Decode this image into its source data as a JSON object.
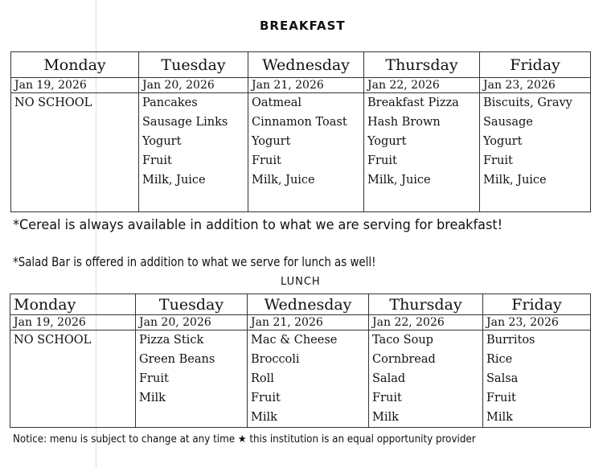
{
  "breakfast": {
    "title": "BREAKFAST",
    "days": [
      {
        "day": "Monday",
        "date": "Jan 19, 2026",
        "items": [
          "NO SCHOOL"
        ]
      },
      {
        "day": "Tuesday",
        "date": "Jan 20, 2026",
        "items": [
          "Pancakes",
          "Sausage Links",
          "Yogurt",
          "Fruit",
          "Milk, Juice"
        ]
      },
      {
        "day": "Wednesday",
        "date": "Jan 21, 2026",
        "items": [
          "Oatmeal",
          "Cinnamon Toast",
          "Yogurt",
          "Fruit",
          "Milk, Juice"
        ]
      },
      {
        "day": "Thursday",
        "date": "Jan 22, 2026",
        "items": [
          "Breakfast Pizza",
          "Hash Brown",
          "Yogurt",
          "Fruit",
          "Milk, Juice"
        ]
      },
      {
        "day": "Friday",
        "date": "Jan 23, 2026",
        "items": [
          "Biscuits, Gravy",
          "Sausage",
          "Yogurt",
          "Fruit",
          "Milk, Juice"
        ]
      }
    ],
    "note": "*Cereal is always available in addition to what we are serving for breakfast!"
  },
  "salad_note": "*Salad Bar is offered in addition to what we serve for lunch as well!",
  "lunch": {
    "title": "LUNCH",
    "days": [
      {
        "day": "Monday",
        "date": "Jan 19, 2026",
        "items": [
          "NO SCHOOL"
        ]
      },
      {
        "day": "Tuesday",
        "date": "Jan 20, 2026",
        "items": [
          "Pizza Stick",
          "Green Beans",
          "Fruit",
          "Milk"
        ]
      },
      {
        "day": "Wednesday",
        "date": "Jan 21, 2026",
        "items": [
          "Mac & Cheese",
          "Broccoli",
          "Roll",
          "Fruit",
          "Milk"
        ]
      },
      {
        "day": "Thursday",
        "date": "Jan 22, 2026",
        "items": [
          "Taco Soup",
          "Cornbread",
          "Salad",
          "Fruit",
          "Milk"
        ]
      },
      {
        "day": "Friday",
        "date": "Jan 23, 2026",
        "items": [
          "Burritos",
          "Rice",
          "Salsa",
          "Fruit",
          "Milk"
        ]
      }
    ]
  },
  "footer": "Notice: menu is subject to change at any time ★ this institution is an equal opportunity provider"
}
